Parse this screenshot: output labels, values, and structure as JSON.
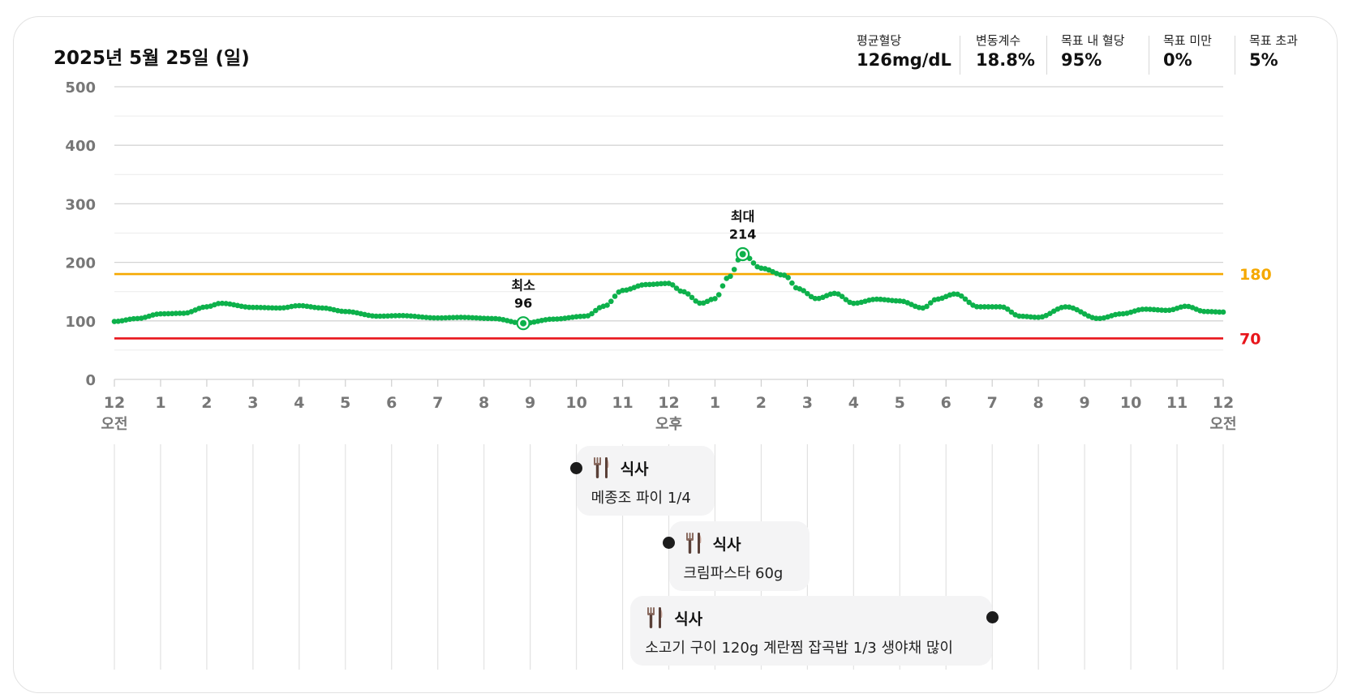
{
  "header": {
    "date": "2025년 5월 25일 (일)",
    "stats": [
      {
        "label": "평균혈당",
        "value": "126mg/dL"
      },
      {
        "label": "변동계수",
        "value": "18.8%"
      },
      {
        "label": "목표 내 혈당",
        "value": "95%"
      },
      {
        "label": "목표 미만",
        "value": "0%"
      },
      {
        "label": "목표 초과",
        "value": "5%"
      }
    ]
  },
  "chart_data": {
    "type": "scatter",
    "title": "",
    "xlabel": "",
    "ylabel": "",
    "x_unit": "hours",
    "xlim": [
      0,
      24
    ],
    "ylim": [
      0,
      500
    ],
    "y_ticks": [
      0,
      100,
      200,
      300,
      400,
      500
    ],
    "x_ticks": [
      {
        "hour": 0,
        "label": "12",
        "period": "오전"
      },
      {
        "hour": 1,
        "label": "1",
        "period": ""
      },
      {
        "hour": 2,
        "label": "2",
        "period": ""
      },
      {
        "hour": 3,
        "label": "3",
        "period": ""
      },
      {
        "hour": 4,
        "label": "4",
        "period": ""
      },
      {
        "hour": 5,
        "label": "5",
        "period": ""
      },
      {
        "hour": 6,
        "label": "6",
        "period": ""
      },
      {
        "hour": 7,
        "label": "7",
        "period": ""
      },
      {
        "hour": 8,
        "label": "8",
        "period": ""
      },
      {
        "hour": 9,
        "label": "9",
        "period": ""
      },
      {
        "hour": 10,
        "label": "10",
        "period": ""
      },
      {
        "hour": 11,
        "label": "11",
        "period": ""
      },
      {
        "hour": 12,
        "label": "12",
        "period": "오후"
      },
      {
        "hour": 13,
        "label": "1",
        "period": ""
      },
      {
        "hour": 14,
        "label": "2",
        "period": ""
      },
      {
        "hour": 15,
        "label": "3",
        "period": ""
      },
      {
        "hour": 16,
        "label": "4",
        "period": ""
      },
      {
        "hour": 17,
        "label": "5",
        "period": ""
      },
      {
        "hour": 18,
        "label": "6",
        "period": ""
      },
      {
        "hour": 19,
        "label": "7",
        "period": ""
      },
      {
        "hour": 20,
        "label": "8",
        "period": ""
      },
      {
        "hour": 21,
        "label": "9",
        "period": ""
      },
      {
        "hour": 22,
        "label": "10",
        "period": ""
      },
      {
        "hour": 23,
        "label": "11",
        "period": ""
      },
      {
        "hour": 24,
        "label": "12",
        "period": "오전"
      }
    ],
    "thresholds": [
      {
        "value": 180,
        "label": "180",
        "color": "#F5A800"
      },
      {
        "value": 70,
        "label": "70",
        "color": "#E8151B"
      }
    ],
    "series_color": "#0DB14B",
    "glucose_keyframes": [
      [
        0,
        99
      ],
      [
        0.5,
        104
      ],
      [
        1,
        112
      ],
      [
        1.5,
        113
      ],
      [
        2,
        124
      ],
      [
        2.3,
        130
      ],
      [
        3,
        123
      ],
      [
        3.6,
        122
      ],
      [
        4,
        126
      ],
      [
        4.5,
        122
      ],
      [
        5,
        116
      ],
      [
        5.7,
        108
      ],
      [
        6.2,
        109
      ],
      [
        7,
        105
      ],
      [
        7.5,
        106
      ],
      [
        8.2,
        104
      ],
      [
        8.85,
        96
      ],
      [
        9.5,
        103
      ],
      [
        10.2,
        108
      ],
      [
        10.6,
        125
      ],
      [
        11,
        152
      ],
      [
        11.5,
        162
      ],
      [
        12,
        164
      ],
      [
        12.3,
        150
      ],
      [
        12.7,
        130
      ],
      [
        13,
        138
      ],
      [
        13.3,
        175
      ],
      [
        13.6,
        214
      ],
      [
        14,
        190
      ],
      [
        14.5,
        178
      ],
      [
        14.8,
        155
      ],
      [
        15.2,
        138
      ],
      [
        15.6,
        147
      ],
      [
        16,
        130
      ],
      [
        16.5,
        137
      ],
      [
        17,
        134
      ],
      [
        17.5,
        122
      ],
      [
        17.8,
        137
      ],
      [
        18.2,
        146
      ],
      [
        18.7,
        124
      ],
      [
        19.2,
        124
      ],
      [
        19.6,
        108
      ],
      [
        20,
        106
      ],
      [
        20.6,
        124
      ],
      [
        21.3,
        104
      ],
      [
        21.8,
        112
      ],
      [
        22.3,
        120
      ],
      [
        22.8,
        118
      ],
      [
        23.2,
        125
      ],
      [
        23.6,
        116
      ],
      [
        24,
        115
      ]
    ],
    "annotations": [
      {
        "label": "최소",
        "value": 96,
        "hour": 8.85
      },
      {
        "label": "최대",
        "value": 214,
        "hour": 13.6
      }
    ]
  },
  "meals": [
    {
      "type": "식사",
      "description": "메종조 파이 1/4",
      "hour": 10
    },
    {
      "type": "식사",
      "description": "크림파스타 60g",
      "hour": 12
    },
    {
      "type": "식사",
      "description": "소고기 구이 120g 계란찜 잡곡밥 1/3 생야채 많이",
      "hour": 19
    }
  ]
}
